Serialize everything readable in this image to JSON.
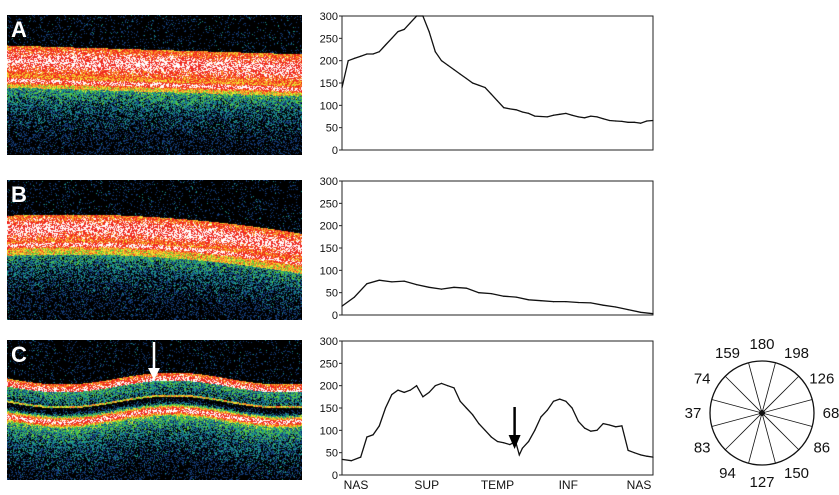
{
  "panels": [
    {
      "label": "A",
      "style": "normal"
    },
    {
      "label": "B",
      "style": "thin"
    },
    {
      "label": "C",
      "style": "lesion"
    }
  ],
  "chart_data": [
    {
      "type": "line",
      "panel": "A",
      "ylim": [
        0,
        300
      ],
      "yticks": [
        "0",
        "50",
        "100",
        "150",
        "200",
        "250",
        "300"
      ],
      "x": [
        0,
        2,
        4,
        6,
        8,
        10,
        12,
        14,
        16,
        18,
        20,
        22,
        24,
        26,
        28,
        30,
        32,
        34,
        36,
        38,
        40,
        42,
        44,
        46,
        48,
        50,
        52,
        54,
        56,
        58,
        60,
        62,
        64,
        66,
        68,
        70,
        72,
        74,
        76,
        78,
        80,
        82,
        84,
        86,
        88,
        90,
        92,
        94,
        96,
        98,
        100
      ],
      "values": [
        140,
        200,
        205,
        210,
        215,
        215,
        220,
        235,
        250,
        265,
        270,
        285,
        300,
        300,
        265,
        220,
        200,
        190,
        180,
        170,
        160,
        150,
        145,
        140,
        125,
        110,
        95,
        92,
        90,
        85,
        82,
        76,
        75,
        74,
        78,
        80,
        82,
        78,
        74,
        72,
        76,
        74,
        70,
        66,
        65,
        64,
        62,
        62,
        60,
        65,
        66
      ]
    },
    {
      "type": "line",
      "panel": "B",
      "ylim": [
        0,
        300
      ],
      "yticks": [
        "0",
        "50",
        "100",
        "150",
        "200",
        "250",
        "300"
      ],
      "x": [
        0,
        4,
        8,
        12,
        16,
        20,
        24,
        28,
        32,
        36,
        40,
        44,
        48,
        52,
        56,
        60,
        64,
        68,
        72,
        76,
        80,
        84,
        88,
        92,
        96,
        100
      ],
      "values": [
        20,
        40,
        70,
        78,
        74,
        76,
        68,
        62,
        58,
        62,
        60,
        50,
        48,
        42,
        40,
        34,
        32,
        30,
        30,
        28,
        27,
        22,
        18,
        12,
        6,
        3
      ]
    },
    {
      "type": "line",
      "panel": "C",
      "ylim": [
        0,
        300
      ],
      "yticks": [
        "0",
        "50",
        "100",
        "150",
        "200",
        "250",
        "300"
      ],
      "x_tick_labels": [
        "NAS",
        "SUP",
        "TEMP",
        "INF",
        "NAS"
      ],
      "x": [
        0,
        3,
        6,
        8,
        10,
        12,
        14,
        16,
        18,
        20,
        22,
        24,
        26,
        28,
        30,
        32,
        34,
        36,
        38,
        40,
        42,
        44,
        46,
        48,
        50,
        52,
        54,
        55,
        56,
        57,
        58,
        60,
        62,
        64,
        66,
        68,
        70,
        72,
        74,
        76,
        78,
        80,
        82,
        84,
        86,
        88,
        90,
        92,
        94,
        96,
        98,
        100
      ],
      "values": [
        35,
        32,
        40,
        85,
        90,
        110,
        150,
        180,
        190,
        185,
        190,
        200,
        175,
        185,
        200,
        205,
        200,
        195,
        165,
        150,
        135,
        115,
        100,
        85,
        75,
        72,
        68,
        72,
        70,
        45,
        60,
        75,
        100,
        130,
        145,
        165,
        170,
        165,
        150,
        120,
        105,
        98,
        100,
        115,
        112,
        108,
        110,
        55,
        50,
        45,
        42,
        40
      ]
    }
  ],
  "clock_thickness": {
    "values": [
      "180",
      "198",
      "126",
      "68",
      "86",
      "150",
      "127",
      "94",
      "83",
      "37",
      "74",
      "159"
    ]
  }
}
